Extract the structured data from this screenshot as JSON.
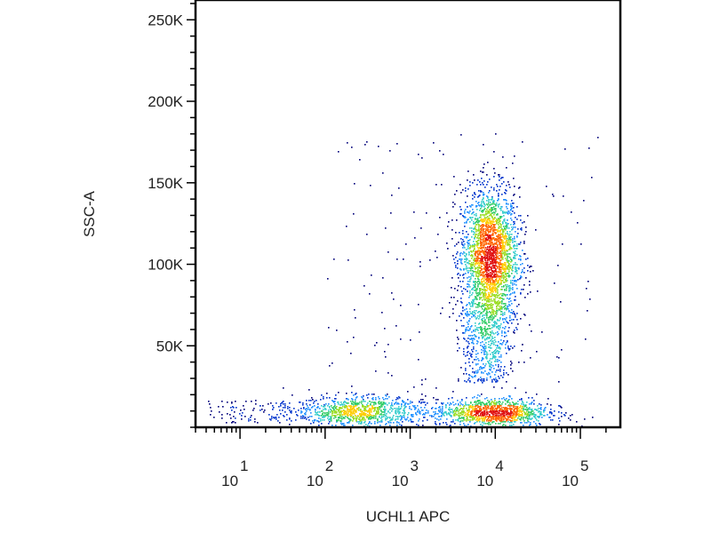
{
  "chart_data": {
    "type": "scatter",
    "subtype": "flow-cytometry density dot plot",
    "title": "",
    "xlabel": "UCHL1 APC",
    "ylabel": "SSC-A",
    "x_scale": "log",
    "xlim": [
      3,
      295000
    ],
    "ylim": [
      0,
      262144
    ],
    "x_ticks": [
      {
        "value": 10,
        "base": "10",
        "exp": "1"
      },
      {
        "value": 100,
        "base": "10",
        "exp": "2"
      },
      {
        "value": 1000,
        "base": "10",
        "exp": "3"
      },
      {
        "value": 10000,
        "base": "10",
        "exp": "4"
      },
      {
        "value": 100000,
        "base": "10",
        "exp": "5"
      }
    ],
    "y_ticks": [
      {
        "value": 50000,
        "label": "50K"
      },
      {
        "value": 100000,
        "label": "100K"
      },
      {
        "value": 150000,
        "label": "150K"
      },
      {
        "value": 200000,
        "label": "200K"
      },
      {
        "value": 250000,
        "label": "250K"
      }
    ],
    "y_minor_step": 10000,
    "grid": false,
    "legend": "none",
    "colormap": [
      "#00007a",
      "#0033cc",
      "#1e90ff",
      "#33cccc",
      "#33cc66",
      "#99dd22",
      "#ffcc00",
      "#ff6600",
      "#e01010"
    ],
    "populations": [
      {
        "name_hint": "main cluster",
        "x_log10_mean": 3.93,
        "x_log10_sd": 0.17,
        "y_mean": 105000,
        "y_sd": 21000,
        "count": 2600
      },
      {
        "name_hint": "tail",
        "x_log10_mean": 3.9,
        "x_log10_sd": 0.15,
        "y_min": 28000,
        "y_max": 78000,
        "count": 550
      },
      {
        "name_hint": "low band left",
        "x_log10_mean": 2.4,
        "x_log10_sd": 0.38,
        "y_mean": 10000,
        "y_sd": 4500,
        "count": 1000
      },
      {
        "name_hint": "low band right",
        "x_log10_mean": 3.95,
        "x_log10_sd": 0.33,
        "y_mean": 9500,
        "y_sd": 4200,
        "count": 1200
      },
      {
        "name_hint": "low sparse",
        "x_log10_min": 0.6,
        "x_log10_max": 1.6,
        "y_min": 3000,
        "y_max": 17000,
        "count": 90
      },
      {
        "name_hint": "background",
        "x_log10_min": 2.0,
        "x_log10_max": 5.2,
        "y_min": 0,
        "y_max": 180000,
        "count": 160
      }
    ]
  }
}
